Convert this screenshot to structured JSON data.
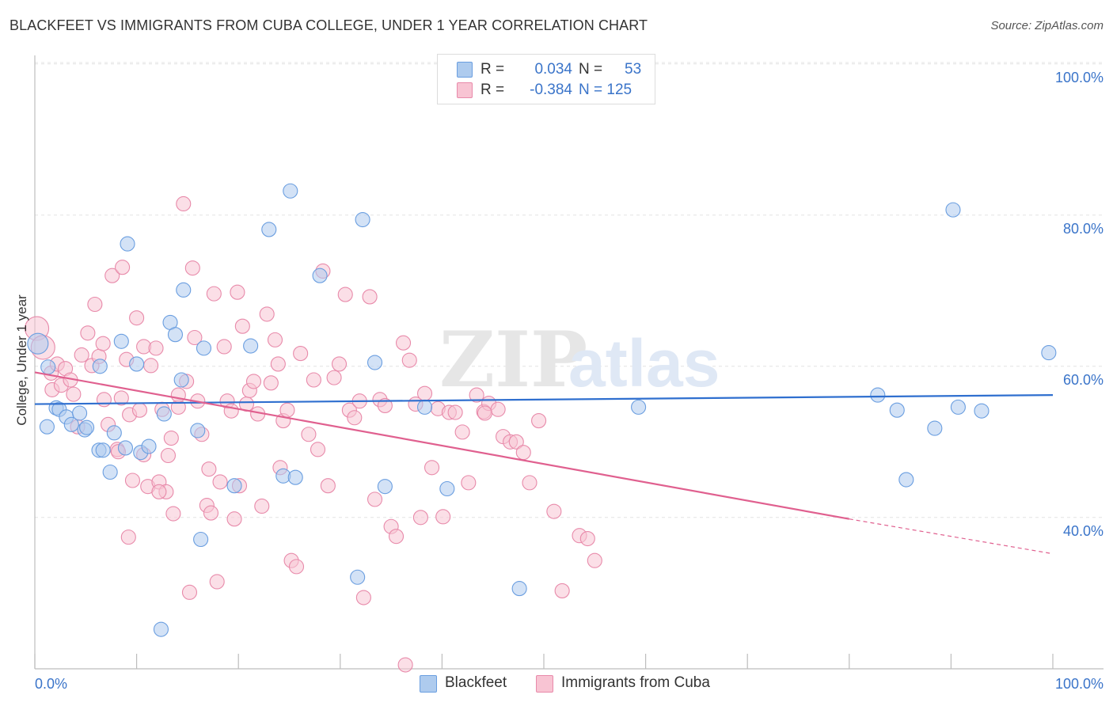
{
  "title": "BLACKFEET VS IMMIGRANTS FROM CUBA COLLEGE, UNDER 1 YEAR CORRELATION CHART",
  "source": "Source: ZipAtlas.com",
  "watermark": {
    "zip": "ZIP",
    "atlas": "atlas"
  },
  "legend": {
    "rows": [
      {
        "r_label": "R =",
        "r_value": "0.034",
        "n_label": "N =",
        "n_value": "53",
        "color": "#aecbee",
        "stroke": "#6a9ee0"
      },
      {
        "r_label": "R =",
        "r_value": "-0.384",
        "n_label": "N = 125",
        "n_value": "",
        "color": "#f8c4d3",
        "stroke": "#e88aaa"
      }
    ]
  },
  "bottom_legend": [
    {
      "label": "Blackfeet",
      "color": "#aecbee",
      "stroke": "#6a9ee0"
    },
    {
      "label": "Immigrants from Cuba",
      "color": "#f8c4d3",
      "stroke": "#e88aaa"
    }
  ],
  "chart_data": {
    "type": "scatter",
    "ylabel": "College, Under 1 year",
    "xlim": [
      0,
      100
    ],
    "ylim": [
      20,
      103
    ],
    "x_tick_labels": [
      {
        "value": 0,
        "label": "0.0%"
      },
      {
        "value": 100,
        "label": "100.0%"
      }
    ],
    "y_tick_labels": [
      {
        "value": 40,
        "label": "40.0%"
      },
      {
        "value": 60,
        "label": "60.0%"
      },
      {
        "value": 80,
        "label": "80.0%"
      },
      {
        "value": 100,
        "label": "100.0%"
      }
    ],
    "grid": true,
    "legend_position": "top-center",
    "series": [
      {
        "name": "Blackfeet",
        "color": "#6a9ee0",
        "fill": "#aecbee",
        "trend": {
          "x": [
            0,
            100
          ],
          "y": [
            55.0,
            56.2
          ]
        },
        "points": [
          [
            0.3,
            63.0
          ],
          [
            1.3,
            59.9
          ],
          [
            1.2,
            52.0
          ],
          [
            2.1,
            54.5
          ],
          [
            2.4,
            54.3
          ],
          [
            3.1,
            53.3
          ],
          [
            3.6,
            52.3
          ],
          [
            4.4,
            53.8
          ],
          [
            4.9,
            51.6
          ],
          [
            5.1,
            51.9
          ],
          [
            6.4,
            60.0
          ],
          [
            6.3,
            48.9
          ],
          [
            6.7,
            48.9
          ],
          [
            7.4,
            46.0
          ],
          [
            7.8,
            51.2
          ],
          [
            8.5,
            63.3
          ],
          [
            8.9,
            49.2
          ],
          [
            9.1,
            76.2
          ],
          [
            10.0,
            60.3
          ],
          [
            10.4,
            48.6
          ],
          [
            11.2,
            49.4
          ],
          [
            12.4,
            25.2
          ],
          [
            12.7,
            53.7
          ],
          [
            13.3,
            65.8
          ],
          [
            13.8,
            64.2
          ],
          [
            14.4,
            58.2
          ],
          [
            14.6,
            70.1
          ],
          [
            16.0,
            51.5
          ],
          [
            16.3,
            37.1
          ],
          [
            16.6,
            62.4
          ],
          [
            19.6,
            44.2
          ],
          [
            21.2,
            62.7
          ],
          [
            23.0,
            78.1
          ],
          [
            25.1,
            83.2
          ],
          [
            24.4,
            45.5
          ],
          [
            25.6,
            45.3
          ],
          [
            28.0,
            72.0
          ],
          [
            31.7,
            32.1
          ],
          [
            32.2,
            79.4
          ],
          [
            33.4,
            60.5
          ],
          [
            34.4,
            44.1
          ],
          [
            38.3,
            54.6
          ],
          [
            40.5,
            43.8
          ],
          [
            47.6,
            30.6
          ],
          [
            59.3,
            54.6
          ],
          [
            82.8,
            56.2
          ],
          [
            84.7,
            54.2
          ],
          [
            85.6,
            45.0
          ],
          [
            88.4,
            51.8
          ],
          [
            90.2,
            80.7
          ],
          [
            90.7,
            54.6
          ],
          [
            93.0,
            54.1
          ],
          [
            99.6,
            61.8
          ]
        ]
      },
      {
        "name": "Immigrants from Cuba",
        "color": "#e88aaa",
        "fill": "#f8c4d3",
        "trend": {
          "x": [
            0,
            80
          ],
          "y": [
            59.2,
            39.8
          ]
        },
        "trend_ext": {
          "x": [
            80,
            100
          ],
          "y": [
            39.8,
            35.2
          ]
        },
        "points": [
          [
            0.2,
            65.0
          ],
          [
            0.8,
            62.5
          ],
          [
            1.6,
            59.1
          ],
          [
            1.7,
            56.9
          ],
          [
            2.2,
            60.3
          ],
          [
            2.6,
            57.5
          ],
          [
            3.0,
            59.7
          ],
          [
            3.5,
            58.2
          ],
          [
            3.8,
            56.3
          ],
          [
            4.2,
            52.0
          ],
          [
            4.6,
            61.5
          ],
          [
            5.2,
            64.4
          ],
          [
            5.6,
            60.1
          ],
          [
            5.9,
            68.2
          ],
          [
            6.3,
            61.3
          ],
          [
            6.7,
            63.0
          ],
          [
            6.8,
            55.6
          ],
          [
            7.2,
            52.3
          ],
          [
            7.6,
            72.0
          ],
          [
            8.1,
            49.0
          ],
          [
            8.5,
            55.8
          ],
          [
            8.6,
            73.1
          ],
          [
            9.0,
            60.9
          ],
          [
            9.2,
            37.4
          ],
          [
            9.3,
            53.6
          ],
          [
            9.6,
            44.9
          ],
          [
            10.0,
            66.4
          ],
          [
            10.3,
            54.2
          ],
          [
            10.7,
            62.6
          ],
          [
            11.1,
            44.1
          ],
          [
            11.4,
            60.1
          ],
          [
            11.9,
            62.4
          ],
          [
            12.2,
            44.7
          ],
          [
            12.5,
            54.3
          ],
          [
            12.9,
            43.4
          ],
          [
            13.1,
            48.2
          ],
          [
            13.4,
            50.5
          ],
          [
            13.6,
            40.5
          ],
          [
            14.1,
            54.6
          ],
          [
            14.6,
            81.5
          ],
          [
            14.9,
            58.0
          ],
          [
            15.2,
            30.1
          ],
          [
            15.5,
            73.0
          ],
          [
            15.7,
            63.8
          ],
          [
            16.0,
            55.4
          ],
          [
            16.4,
            51.0
          ],
          [
            16.9,
            41.6
          ],
          [
            17.1,
            46.4
          ],
          [
            17.3,
            40.6
          ],
          [
            17.6,
            69.6
          ],
          [
            17.9,
            31.5
          ],
          [
            18.2,
            44.7
          ],
          [
            18.6,
            62.6
          ],
          [
            18.9,
            55.4
          ],
          [
            19.3,
            54.1
          ],
          [
            19.6,
            39.8
          ],
          [
            19.9,
            69.8
          ],
          [
            20.1,
            44.2
          ],
          [
            20.4,
            65.3
          ],
          [
            20.8,
            55.0
          ],
          [
            21.1,
            56.8
          ],
          [
            21.5,
            58.0
          ],
          [
            21.9,
            53.7
          ],
          [
            22.3,
            41.5
          ],
          [
            22.8,
            66.9
          ],
          [
            23.2,
            57.8
          ],
          [
            23.6,
            63.5
          ],
          [
            23.9,
            60.3
          ],
          [
            24.1,
            46.6
          ],
          [
            24.4,
            52.8
          ],
          [
            24.8,
            54.2
          ],
          [
            25.2,
            34.3
          ],
          [
            25.7,
            33.5
          ],
          [
            26.1,
            61.7
          ],
          [
            26.9,
            51.0
          ],
          [
            27.4,
            58.2
          ],
          [
            27.8,
            49.0
          ],
          [
            28.3,
            72.6
          ],
          [
            28.8,
            44.2
          ],
          [
            29.4,
            58.5
          ],
          [
            29.9,
            60.3
          ],
          [
            30.5,
            69.5
          ],
          [
            30.9,
            54.2
          ],
          [
            31.4,
            53.2
          ],
          [
            31.9,
            55.4
          ],
          [
            32.3,
            29.4
          ],
          [
            32.9,
            69.2
          ],
          [
            33.4,
            42.4
          ],
          [
            33.9,
            55.6
          ],
          [
            34.4,
            54.8
          ],
          [
            35.0,
            38.8
          ],
          [
            35.5,
            37.5
          ],
          [
            36.2,
            63.1
          ],
          [
            36.8,
            60.8
          ],
          [
            37.4,
            55.0
          ],
          [
            37.9,
            40.0
          ],
          [
            38.3,
            56.4
          ],
          [
            39.0,
            46.6
          ],
          [
            39.6,
            54.4
          ],
          [
            40.1,
            40.1
          ],
          [
            40.7,
            53.9
          ],
          [
            41.3,
            53.9
          ],
          [
            42.0,
            51.3
          ],
          [
            42.6,
            44.6
          ],
          [
            43.4,
            56.2
          ],
          [
            44.1,
            54.0
          ],
          [
            44.6,
            55.1
          ],
          [
            45.5,
            54.3
          ],
          [
            46.0,
            50.7
          ],
          [
            46.7,
            50.0
          ],
          [
            47.3,
            50.0
          ],
          [
            48.0,
            48.6
          ],
          [
            48.6,
            44.6
          ],
          [
            49.5,
            52.8
          ],
          [
            51.0,
            40.8
          ],
          [
            51.8,
            30.3
          ],
          [
            53.5,
            37.6
          ],
          [
            54.3,
            37.2
          ],
          [
            55.0,
            34.3
          ],
          [
            36.4,
            20.5
          ],
          [
            12.2,
            43.4
          ],
          [
            14.1,
            56.2
          ],
          [
            10.7,
            48.3
          ],
          [
            44.2,
            53.8
          ],
          [
            8.2,
            48.7
          ]
        ]
      }
    ]
  }
}
